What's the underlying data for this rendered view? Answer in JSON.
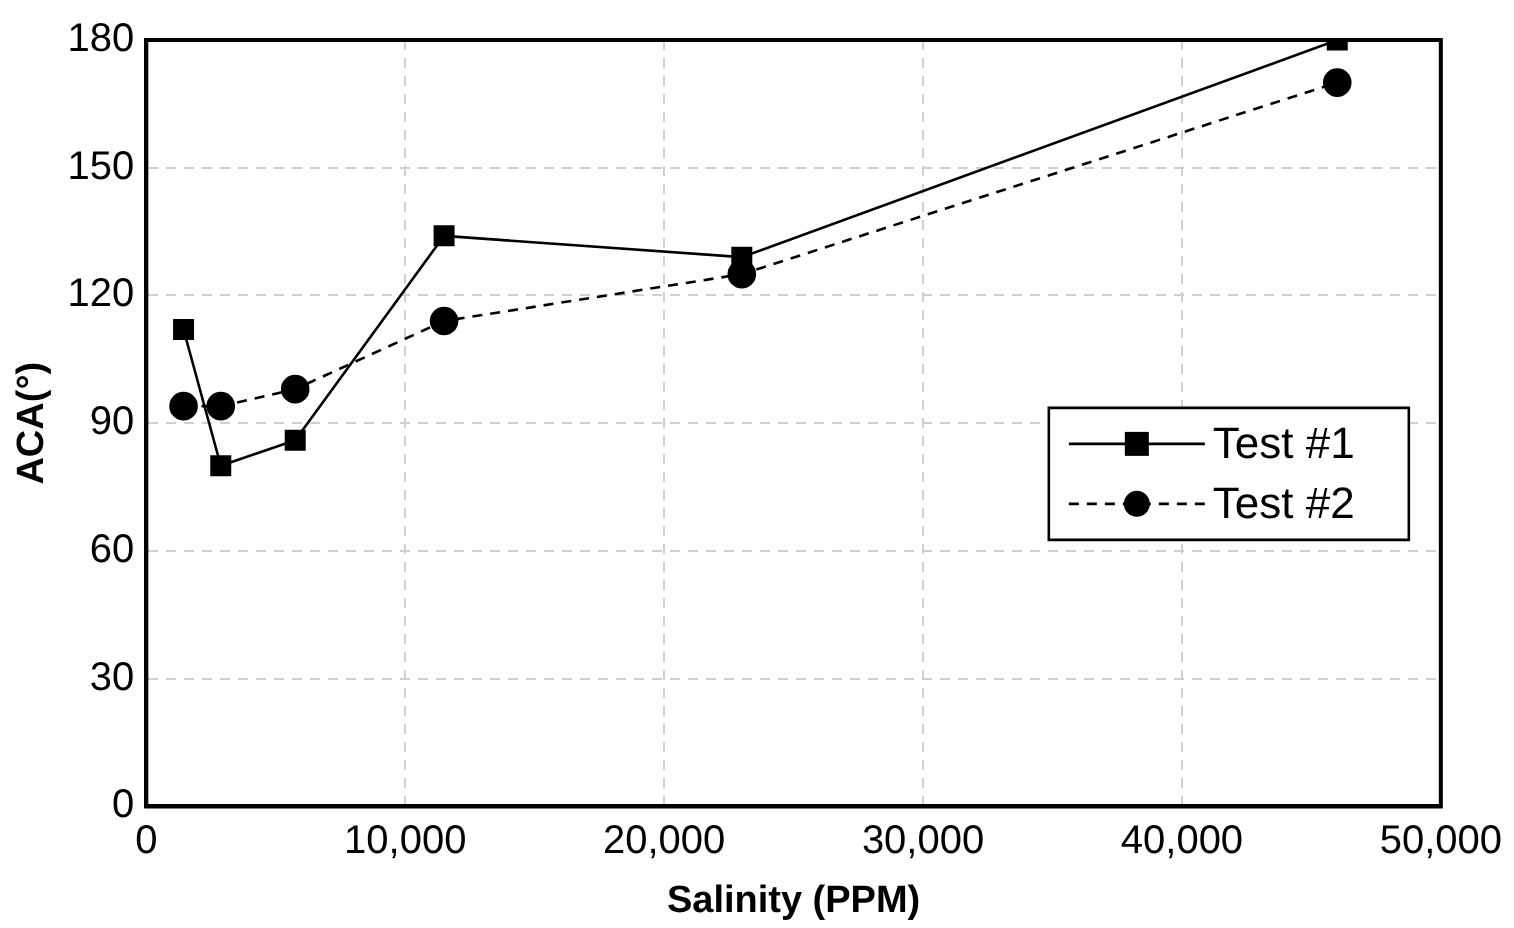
{
  "chart_data": {
    "type": "line",
    "xlabel": "Salinity (PPM)",
    "ylabel": "ACA(°)",
    "x": [
      1437.5,
      2875,
      5750,
      11500,
      23000,
      46000
    ],
    "series": [
      {
        "name": "Test #1",
        "color": "#000000",
        "marker": "square",
        "line_style": "solid",
        "values": [
          112,
          80,
          86,
          134,
          129,
          180
        ]
      },
      {
        "name": "Test #2",
        "color": "#000000",
        "marker": "circle",
        "line_style": "dashed",
        "values": [
          94,
          94,
          98,
          114,
          125,
          170
        ]
      }
    ],
    "xlim": [
      0,
      50000
    ],
    "xticks": [
      0,
      {
        "value": 10000,
        "label": "10,000"
      },
      {
        "value": 20000,
        "label": "20,000"
      },
      {
        "value": 30000,
        "label": "30,000"
      },
      {
        "value": 40000,
        "label": "40,000"
      },
      {
        "value": 50000,
        "label": "50,000"
      }
    ],
    "ylim": [
      0,
      180
    ],
    "yticks": [
      0,
      30,
      60,
      90,
      120,
      150,
      180
    ],
    "grid": true,
    "legend": "right"
  }
}
